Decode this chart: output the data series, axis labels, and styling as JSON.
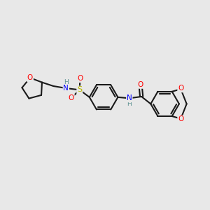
{
  "bg_color": "#e8e8e8",
  "bond_color": "#1a1a1a",
  "bond_width": 1.5,
  "atom_colors": {
    "O": "#ff0000",
    "N": "#0000ff",
    "S": "#b8b800",
    "H": "#5a9090",
    "C": "#1a1a1a"
  },
  "fig_size": [
    3.0,
    3.0
  ],
  "dpi": 100
}
